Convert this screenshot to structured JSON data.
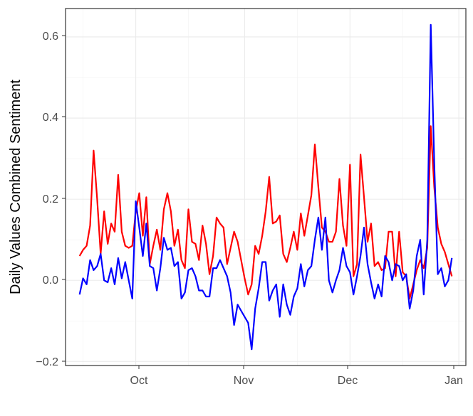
{
  "chart_data": {
    "type": "line",
    "title": "",
    "xlabel": "",
    "ylabel": "Daily Values Combined Sentiment",
    "x_ticks": [
      "Oct",
      "Nov",
      "Dec",
      "Jan"
    ],
    "y_ticks": [
      "−0.2",
      "0.0",
      "0.2",
      "0.4",
      "0.6"
    ],
    "xlim": [
      "2023-09-11",
      "2024-01-03"
    ],
    "ylim": [
      -0.21,
      0.67
    ],
    "grid": true,
    "legend": "none",
    "series": [
      {
        "color": "#ff0000",
        "points": [
          [
            "2023-09-15",
            0.06
          ],
          [
            "2023-09-16",
            0.075
          ],
          [
            "2023-09-17",
            0.085
          ],
          [
            "2023-09-18",
            0.135
          ],
          [
            "2023-09-19",
            0.32
          ],
          [
            "2023-09-20",
            0.2
          ],
          [
            "2023-09-21",
            0.065
          ],
          [
            "2023-09-22",
            0.17
          ],
          [
            "2023-09-23",
            0.09
          ],
          [
            "2023-09-24",
            0.14
          ],
          [
            "2023-09-25",
            0.12
          ],
          [
            "2023-09-26",
            0.26
          ],
          [
            "2023-09-27",
            0.12
          ],
          [
            "2023-09-28",
            0.085
          ],
          [
            "2023-09-29",
            0.08
          ],
          [
            "2023-09-30",
            0.085
          ],
          [
            "2023-10-01",
            0.17
          ],
          [
            "2023-10-02",
            0.215
          ],
          [
            "2023-10-03",
            0.11
          ],
          [
            "2023-10-04",
            0.205
          ],
          [
            "2023-10-05",
            0.04
          ],
          [
            "2023-10-06",
            0.085
          ],
          [
            "2023-10-07",
            0.125
          ],
          [
            "2023-10-08",
            0.075
          ],
          [
            "2023-10-09",
            0.175
          ],
          [
            "2023-10-10",
            0.215
          ],
          [
            "2023-10-11",
            0.17
          ],
          [
            "2023-10-12",
            0.085
          ],
          [
            "2023-10-13",
            0.125
          ],
          [
            "2023-10-14",
            0.05
          ],
          [
            "2023-10-15",
            0.03
          ],
          [
            "2023-10-16",
            0.175
          ],
          [
            "2023-10-17",
            0.095
          ],
          [
            "2023-10-18",
            0.09
          ],
          [
            "2023-10-19",
            0.05
          ],
          [
            "2023-10-20",
            0.135
          ],
          [
            "2023-10-21",
            0.09
          ],
          [
            "2023-10-22",
            0.015
          ],
          [
            "2023-10-23",
            0.06
          ],
          [
            "2023-10-24",
            0.155
          ],
          [
            "2023-10-25",
            0.14
          ],
          [
            "2023-10-26",
            0.13
          ],
          [
            "2023-10-27",
            0.04
          ],
          [
            "2023-10-28",
            0.08
          ],
          [
            "2023-10-29",
            0.12
          ],
          [
            "2023-10-30",
            0.095
          ],
          [
            "2023-10-31",
            0.05
          ],
          [
            "2023-11-01",
            0.005
          ],
          [
            "2023-11-02",
            -0.035
          ],
          [
            "2023-11-03",
            -0.01
          ],
          [
            "2023-11-04",
            0.085
          ],
          [
            "2023-11-05",
            0.065
          ],
          [
            "2023-11-06",
            0.11
          ],
          [
            "2023-11-07",
            0.17
          ],
          [
            "2023-11-08",
            0.255
          ],
          [
            "2023-11-09",
            0.14
          ],
          [
            "2023-11-10",
            0.145
          ],
          [
            "2023-11-11",
            0.16
          ],
          [
            "2023-11-12",
            0.065
          ],
          [
            "2023-11-13",
            0.045
          ],
          [
            "2023-11-14",
            0.08
          ],
          [
            "2023-11-15",
            0.12
          ],
          [
            "2023-11-16",
            0.075
          ],
          [
            "2023-11-17",
            0.165
          ],
          [
            "2023-11-18",
            0.11
          ],
          [
            "2023-11-19",
            0.16
          ],
          [
            "2023-11-20",
            0.21
          ],
          [
            "2023-11-21",
            0.335
          ],
          [
            "2023-11-22",
            0.23
          ],
          [
            "2023-11-23",
            0.13
          ],
          [
            "2023-11-24",
            0.12
          ],
          [
            "2023-11-25",
            0.095
          ],
          [
            "2023-11-26",
            0.095
          ],
          [
            "2023-11-27",
            0.12
          ],
          [
            "2023-11-28",
            0.25
          ],
          [
            "2023-11-29",
            0.135
          ],
          [
            "2023-11-30",
            0.085
          ],
          [
            "2023-12-01",
            0.285
          ],
          [
            "2023-12-02",
            0.01
          ],
          [
            "2023-12-03",
            0.04
          ],
          [
            "2023-12-04",
            0.31
          ],
          [
            "2023-12-05",
            0.205
          ],
          [
            "2023-12-06",
            0.095
          ],
          [
            "2023-12-07",
            0.14
          ],
          [
            "2023-12-08",
            0.035
          ],
          [
            "2023-12-09",
            0.045
          ],
          [
            "2023-12-10",
            0.025
          ],
          [
            "2023-12-11",
            0.03
          ],
          [
            "2023-12-12",
            0.12
          ],
          [
            "2023-12-13",
            0.12
          ],
          [
            "2023-12-14",
            0.01
          ],
          [
            "2023-12-15",
            0.12
          ],
          [
            "2023-12-16",
            0.02
          ],
          [
            "2023-12-17",
            0.01
          ],
          [
            "2023-12-18",
            -0.045
          ],
          [
            "2023-12-19",
            -0.01
          ],
          [
            "2023-12-20",
            0.025
          ],
          [
            "2023-12-21",
            0.05
          ],
          [
            "2023-12-22",
            0.03
          ],
          [
            "2023-12-23",
            0.08
          ],
          [
            "2023-12-24",
            0.38
          ],
          [
            "2023-12-25",
            0.23
          ],
          [
            "2023-12-26",
            0.13
          ],
          [
            "2023-12-27",
            0.09
          ],
          [
            "2023-12-28",
            0.07
          ],
          [
            "2023-12-29",
            0.04
          ],
          [
            "2023-12-30",
            0.01
          ]
        ]
      },
      {
        "color": "#0000ff",
        "points": [
          [
            "2023-09-15",
            -0.035
          ],
          [
            "2023-09-16",
            0.005
          ],
          [
            "2023-09-17",
            -0.01
          ],
          [
            "2023-09-18",
            0.05
          ],
          [
            "2023-09-19",
            0.025
          ],
          [
            "2023-09-20",
            0.035
          ],
          [
            "2023-09-21",
            0.065
          ],
          [
            "2023-09-22",
            0.0
          ],
          [
            "2023-09-23",
            -0.005
          ],
          [
            "2023-09-24",
            0.03
          ],
          [
            "2023-09-25",
            -0.01
          ],
          [
            "2023-09-26",
            0.055
          ],
          [
            "2023-09-27",
            0.005
          ],
          [
            "2023-09-28",
            0.045
          ],
          [
            "2023-09-29",
            0.0
          ],
          [
            "2023-09-30",
            -0.045
          ],
          [
            "2023-10-01",
            0.195
          ],
          [
            "2023-10-02",
            0.13
          ],
          [
            "2023-10-03",
            0.06
          ],
          [
            "2023-10-04",
            0.14
          ],
          [
            "2023-10-05",
            0.035
          ],
          [
            "2023-10-06",
            0.03
          ],
          [
            "2023-10-07",
            -0.025
          ],
          [
            "2023-10-08",
            0.03
          ],
          [
            "2023-10-09",
            0.105
          ],
          [
            "2023-10-10",
            0.075
          ],
          [
            "2023-10-11",
            0.08
          ],
          [
            "2023-10-12",
            0.035
          ],
          [
            "2023-10-13",
            0.045
          ],
          [
            "2023-10-14",
            -0.045
          ],
          [
            "2023-10-15",
            -0.03
          ],
          [
            "2023-10-16",
            0.025
          ],
          [
            "2023-10-17",
            0.03
          ],
          [
            "2023-10-18",
            0.01
          ],
          [
            "2023-10-19",
            -0.025
          ],
          [
            "2023-10-20",
            -0.025
          ],
          [
            "2023-10-21",
            -0.04
          ],
          [
            "2023-10-22",
            -0.04
          ],
          [
            "2023-10-23",
            0.03
          ],
          [
            "2023-10-24",
            0.03
          ],
          [
            "2023-10-25",
            0.05
          ],
          [
            "2023-10-26",
            0.03
          ],
          [
            "2023-10-27",
            0.01
          ],
          [
            "2023-10-28",
            -0.03
          ],
          [
            "2023-10-29",
            -0.11
          ],
          [
            "2023-10-30",
            -0.06
          ],
          [
            "2023-10-31",
            -0.075
          ],
          [
            "2023-11-01",
            -0.09
          ],
          [
            "2023-11-02",
            -0.105
          ],
          [
            "2023-11-03",
            -0.17
          ],
          [
            "2023-11-04",
            -0.07
          ],
          [
            "2023-11-05",
            -0.02
          ],
          [
            "2023-11-06",
            0.045
          ],
          [
            "2023-11-07",
            0.045
          ],
          [
            "2023-11-08",
            -0.05
          ],
          [
            "2023-11-09",
            -0.025
          ],
          [
            "2023-11-10",
            -0.01
          ],
          [
            "2023-11-11",
            -0.09
          ],
          [
            "2023-11-12",
            -0.01
          ],
          [
            "2023-11-13",
            -0.06
          ],
          [
            "2023-11-14",
            -0.085
          ],
          [
            "2023-11-15",
            -0.04
          ],
          [
            "2023-11-16",
            -0.02
          ],
          [
            "2023-11-17",
            0.04
          ],
          [
            "2023-11-18",
            -0.015
          ],
          [
            "2023-11-19",
            0.025
          ],
          [
            "2023-11-20",
            0.035
          ],
          [
            "2023-11-21",
            0.1
          ],
          [
            "2023-11-22",
            0.155
          ],
          [
            "2023-11-23",
            0.075
          ],
          [
            "2023-11-24",
            0.155
          ],
          [
            "2023-11-25",
            0.0
          ],
          [
            "2023-11-26",
            -0.03
          ],
          [
            "2023-11-27",
            0.0
          ],
          [
            "2023-11-28",
            0.025
          ],
          [
            "2023-11-29",
            0.08
          ],
          [
            "2023-11-30",
            0.035
          ],
          [
            "2023-12-01",
            0.02
          ],
          [
            "2023-12-02",
            -0.035
          ],
          [
            "2023-12-03",
            0.01
          ],
          [
            "2023-12-04",
            0.06
          ],
          [
            "2023-12-05",
            0.13
          ],
          [
            "2023-12-06",
            0.04
          ],
          [
            "2023-12-07",
            -0.005
          ],
          [
            "2023-12-08",
            -0.045
          ],
          [
            "2023-12-09",
            -0.01
          ],
          [
            "2023-12-10",
            -0.04
          ],
          [
            "2023-12-11",
            0.06
          ],
          [
            "2023-12-12",
            0.045
          ],
          [
            "2023-12-13",
            0.0
          ],
          [
            "2023-12-14",
            0.04
          ],
          [
            "2023-12-15",
            0.035
          ],
          [
            "2023-12-16",
            0.0
          ],
          [
            "2023-12-17",
            0.015
          ],
          [
            "2023-12-18",
            -0.07
          ],
          [
            "2023-12-19",
            -0.025
          ],
          [
            "2023-12-20",
            0.06
          ],
          [
            "2023-12-21",
            0.1
          ],
          [
            "2023-12-22",
            -0.035
          ],
          [
            "2023-12-23",
            0.1
          ],
          [
            "2023-12-24",
            0.63
          ],
          [
            "2023-12-25",
            0.29
          ],
          [
            "2023-12-26",
            0.015
          ],
          [
            "2023-12-27",
            0.03
          ],
          [
            "2023-12-28",
            -0.015
          ],
          [
            "2023-12-29",
            0.0
          ],
          [
            "2023-12-30",
            0.055
          ]
        ]
      }
    ]
  }
}
